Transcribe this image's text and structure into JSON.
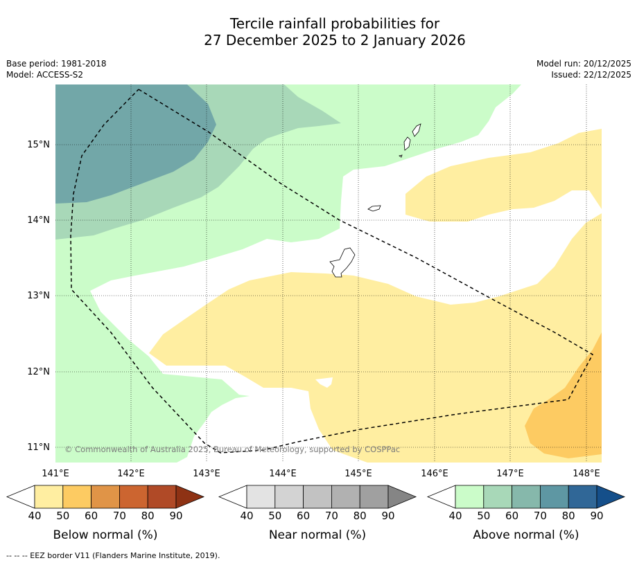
{
  "title": {
    "line1": "Tercile rainfall probabilities for",
    "line2": "27 December 2025 to 2 January 2026"
  },
  "meta_left": {
    "base_period": "Base period: 1981-2018",
    "model": "Model: ACCESS-S2"
  },
  "meta_right": {
    "model_run": "Model run: 20/12/2025",
    "issued": "Issued: 22/12/2025"
  },
  "map": {
    "lon_labels": [
      "141°E",
      "142°E",
      "143°E",
      "144°E",
      "145°E",
      "146°E",
      "147°E",
      "148°E"
    ],
    "lat_labels": [
      "15°N",
      "14°N",
      "13°N",
      "12°N",
      "11°N"
    ],
    "copyright": "© Commonwealth of Australia 2025, Bureau of Meteorology, supported by COSPPac"
  },
  "legends": [
    {
      "label": "Below normal (%)",
      "ticks": [
        "40",
        "50",
        "60",
        "70",
        "80",
        "90"
      ],
      "colors": [
        "#ffeea1",
        "#fdcb62",
        "#e09447",
        "#cc6530",
        "#b04a27",
        "#8e3214"
      ]
    },
    {
      "label": "Near normal (%)",
      "ticks": [
        "40",
        "50",
        "60",
        "70",
        "80",
        "90"
      ],
      "colors": [
        "#e3e3e3",
        "#d3d3d3",
        "#c2c2c2",
        "#b1b1b1",
        "#a0a0a0",
        "#858585"
      ]
    },
    {
      "label": "Above normal (%)",
      "ticks": [
        "40",
        "50",
        "60",
        "70",
        "80",
        "90"
      ],
      "colors": [
        "#cbfcc9",
        "#a8d8b8",
        "#86b8ab",
        "#5e97a3",
        "#306797",
        "#154f8a"
      ]
    }
  ],
  "footnote": "--  --  -- EEZ border V11 (Flanders Marine Institute, 2019)."
}
